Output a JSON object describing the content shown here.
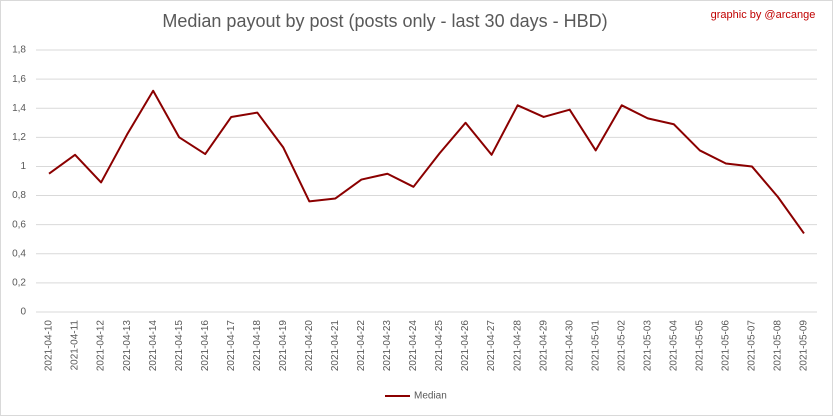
{
  "chart_data": {
    "type": "line",
    "title": "Median payout by post (posts only - last 30 days - HBD)",
    "credit": "graphic by @arcange",
    "x": [
      "2021-04-10",
      "2021-04-11",
      "2021-04-12",
      "2021-04-13",
      "2021-04-14",
      "2021-04-15",
      "2021-04-16",
      "2021-04-17",
      "2021-04-18",
      "2021-04-19",
      "2021-04-20",
      "2021-04-21",
      "2021-04-22",
      "2021-04-23",
      "2021-04-24",
      "2021-04-25",
      "2021-04-26",
      "2021-04-27",
      "2021-04-28",
      "2021-04-29",
      "2021-04-30",
      "2021-05-01",
      "2021-05-02",
      "2021-05-03",
      "2021-05-04",
      "2021-05-05",
      "2021-05-06",
      "2021-05-07",
      "2021-05-08",
      "2021-05-09"
    ],
    "series": [
      {
        "name": "Median",
        "color": "#8b0000",
        "values": [
          0.95,
          1.08,
          0.89,
          1.22,
          1.52,
          1.2,
          1.085,
          1.34,
          1.37,
          1.13,
          0.76,
          0.78,
          0.91,
          0.95,
          0.86,
          1.09,
          1.3,
          1.08,
          1.42,
          1.34,
          1.39,
          1.11,
          1.42,
          1.33,
          1.29,
          1.11,
          1.02,
          1.0,
          0.79,
          0.54
        ]
      }
    ],
    "ylim": [
      0,
      1.8
    ],
    "yticks": [
      0,
      {
        "value": 0.2,
        "label": "0,2"
      },
      {
        "value": 0.4,
        "label": "0,4"
      },
      {
        "value": 0.6,
        "label": "0,6"
      },
      {
        "value": 0.8,
        "label": "0,8"
      },
      1,
      {
        "value": 1.2,
        "label": "1,2"
      },
      {
        "value": 1.4,
        "label": "1,4"
      },
      {
        "value": 1.6,
        "label": "1,6"
      },
      {
        "value": 1.8,
        "label": "1,8"
      }
    ],
    "grid": true,
    "legend": "bottom"
  }
}
